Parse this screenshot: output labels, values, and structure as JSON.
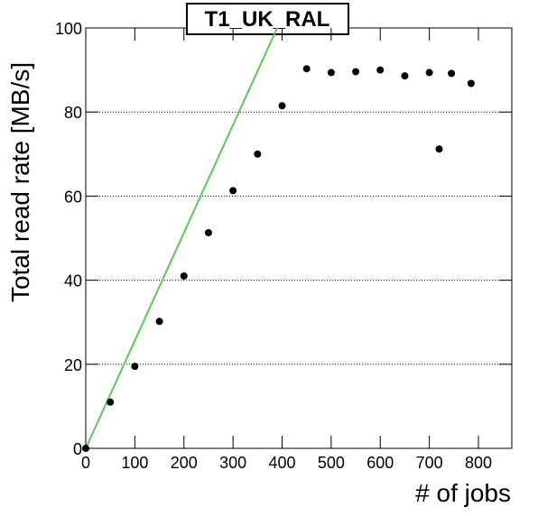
{
  "chart_data": {
    "type": "scatter",
    "title": "T1_UK_RAL",
    "x_label": "# of jobs",
    "y_label": "Total read rate [MB/s]",
    "series": [
      {
        "color": "#000000",
        "x": [
          0,
          50,
          100,
          150,
          200,
          250,
          300,
          350,
          400,
          450,
          500,
          550,
          600,
          650,
          700,
          720,
          745,
          785
        ],
        "values": [
          0,
          11,
          19.5,
          30.2,
          41,
          51.3,
          61.3,
          70,
          81.5,
          90.3,
          89.4,
          89.6,
          90,
          88.6,
          89.4,
          71.2,
          89.2,
          86.8
        ]
      }
    ],
    "fit": {
      "color": "#55cc55",
      "x": [
        0,
        390
      ],
      "values": [
        0,
        100
      ]
    },
    "xlim": [
      0,
      868
    ],
    "ylim": [
      0,
      100
    ],
    "xticks": [
      0,
      100,
      200,
      300,
      400,
      500,
      600,
      700,
      800
    ],
    "yticks": [
      0,
      20,
      40,
      60,
      80,
      100
    ],
    "grid": true
  }
}
